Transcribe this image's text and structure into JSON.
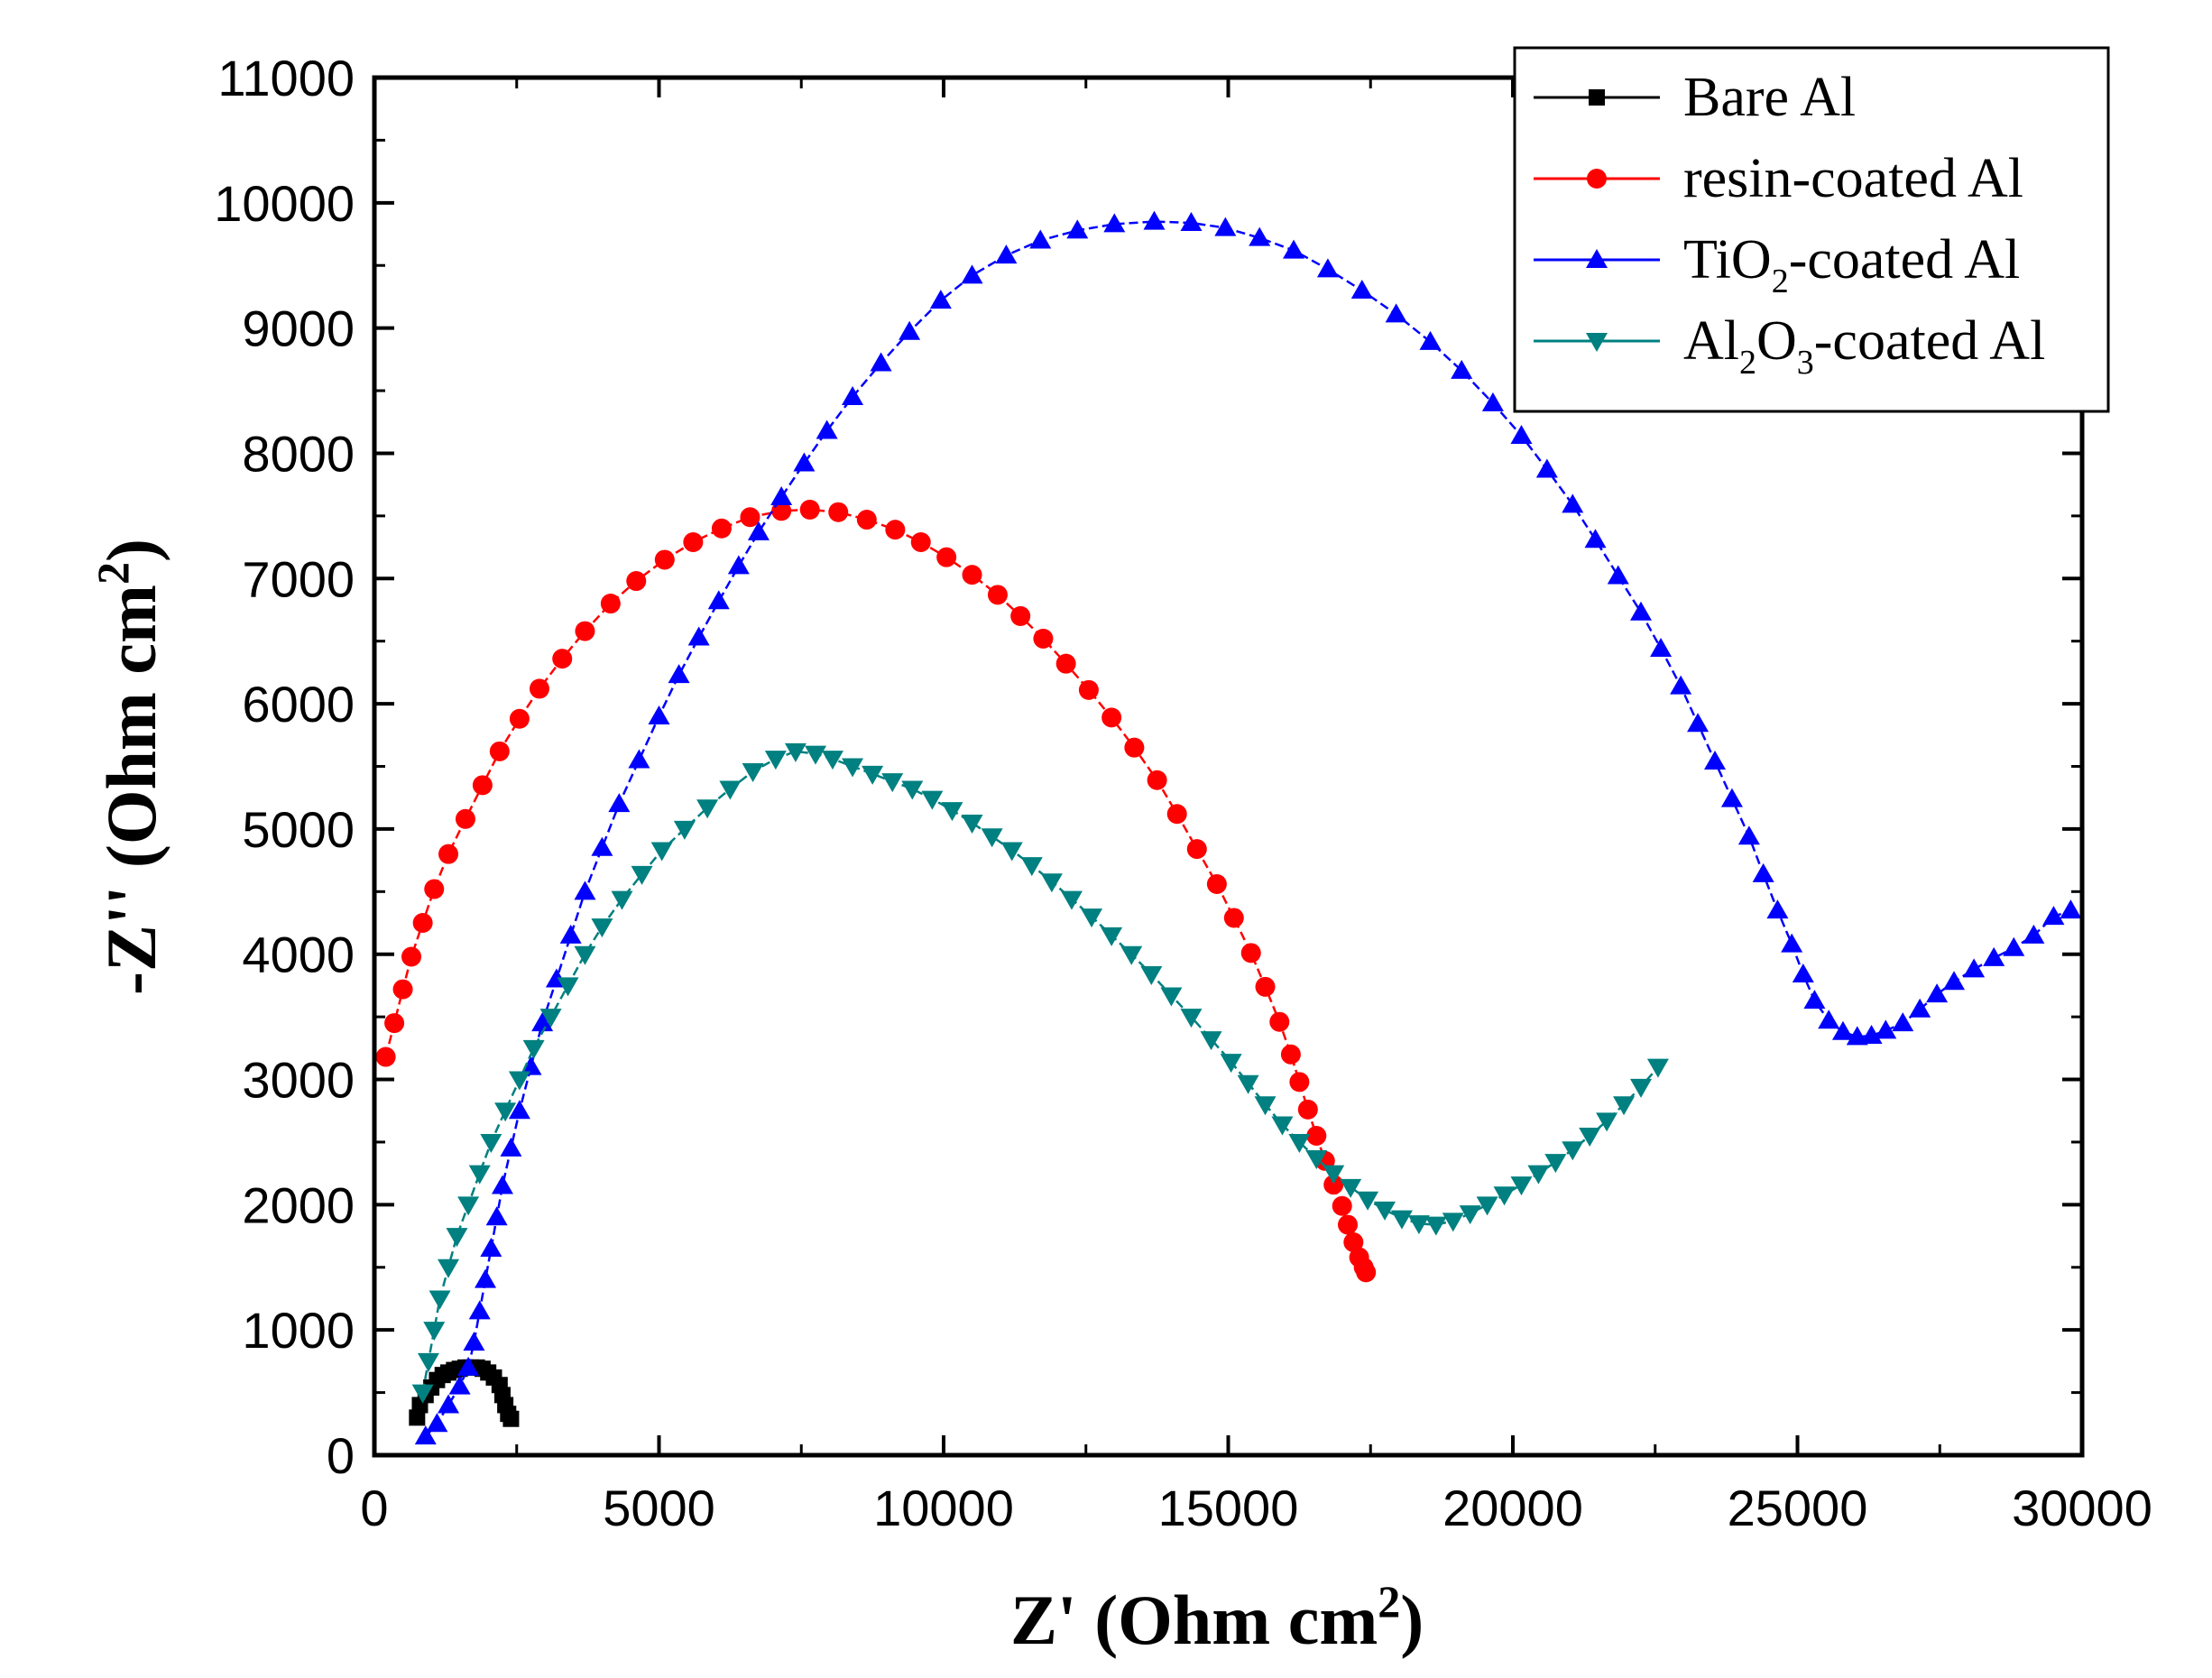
{
  "chart_data": {
    "type": "scatter",
    "title": "",
    "xlabel": "Z'  (Ohm cm",
    "xlabel_sup": "2",
    "ylabel": "-Z''  (Ohm cm",
    "ylabel_sup": "2",
    "xlim": [
      0,
      30000
    ],
    "ylim": [
      0,
      11000
    ],
    "x_ticks": [
      0,
      5000,
      10000,
      15000,
      20000,
      25000,
      30000
    ],
    "y_ticks": [
      0,
      1000,
      2000,
      3000,
      4000,
      5000,
      6000,
      7000,
      8000,
      9000,
      10000,
      11000
    ],
    "x_tick_labels": [
      "0",
      "5000",
      "10000",
      "15000",
      "20000",
      "25000",
      "30000"
    ],
    "y_tick_labels": [
      "0",
      "1000",
      "2000",
      "3000",
      "4000",
      "5000",
      "6000",
      "7000",
      "8000",
      "9000",
      "10000",
      "11000"
    ],
    "legend_position": "top-right",
    "series": [
      {
        "name": "Bare Al",
        "legend_parts": [
          "Bare Al"
        ],
        "color": "#000000",
        "marker": "square",
        "points": [
          [
            750,
            300
          ],
          [
            800,
            400
          ],
          [
            900,
            480
          ],
          [
            1000,
            540
          ],
          [
            1100,
            600
          ],
          [
            1200,
            640
          ],
          [
            1300,
            660
          ],
          [
            1400,
            680
          ],
          [
            1500,
            690
          ],
          [
            1600,
            700
          ],
          [
            1700,
            700
          ],
          [
            1800,
            700
          ],
          [
            1900,
            690
          ],
          [
            2000,
            660
          ],
          [
            2100,
            620
          ],
          [
            2200,
            560
          ],
          [
            2250,
            480
          ],
          [
            2300,
            400
          ],
          [
            2350,
            330
          ],
          [
            2400,
            290
          ]
        ]
      },
      {
        "name": "resin-coated Al",
        "legend_parts": [
          "resin-coated Al"
        ],
        "color": "#ff0000",
        "marker": "circle",
        "points": [
          [
            200,
            3180
          ],
          [
            350,
            3450
          ],
          [
            500,
            3720
          ],
          [
            650,
            3980
          ],
          [
            850,
            4250
          ],
          [
            1050,
            4520
          ],
          [
            1300,
            4800
          ],
          [
            1600,
            5080
          ],
          [
            1900,
            5350
          ],
          [
            2200,
            5620
          ],
          [
            2550,
            5880
          ],
          [
            2900,
            6120
          ],
          [
            3300,
            6360
          ],
          [
            3700,
            6580
          ],
          [
            4150,
            6800
          ],
          [
            4600,
            6980
          ],
          [
            5100,
            7150
          ],
          [
            5600,
            7290
          ],
          [
            6100,
            7400
          ],
          [
            6600,
            7490
          ],
          [
            7150,
            7540
          ],
          [
            7650,
            7550
          ],
          [
            8150,
            7530
          ],
          [
            8650,
            7470
          ],
          [
            9150,
            7390
          ],
          [
            9600,
            7290
          ],
          [
            10050,
            7170
          ],
          [
            10500,
            7030
          ],
          [
            10950,
            6870
          ],
          [
            11350,
            6700
          ],
          [
            11750,
            6520
          ],
          [
            12150,
            6320
          ],
          [
            12550,
            6110
          ],
          [
            12950,
            5890
          ],
          [
            13350,
            5650
          ],
          [
            13750,
            5390
          ],
          [
            14100,
            5120
          ],
          [
            14450,
            4840
          ],
          [
            14800,
            4560
          ],
          [
            15100,
            4290
          ],
          [
            15400,
            4010
          ],
          [
            15650,
            3740
          ],
          [
            15900,
            3460
          ],
          [
            16100,
            3200
          ],
          [
            16250,
            2980
          ],
          [
            16400,
            2760
          ],
          [
            16550,
            2550
          ],
          [
            16700,
            2350
          ],
          [
            16850,
            2160
          ],
          [
            17000,
            1990
          ],
          [
            17100,
            1840
          ],
          [
            17200,
            1700
          ],
          [
            17300,
            1580
          ],
          [
            17380,
            1500
          ],
          [
            17420,
            1460
          ]
        ]
      },
      {
        "name": "TiO2-coated Al",
        "legend_parts": [
          "TiO",
          "2",
          "-coated Al"
        ],
        "color": "#0000ff",
        "marker": "triangle-up",
        "points": [
          [
            900,
            150
          ],
          [
            1100,
            250
          ],
          [
            1300,
            400
          ],
          [
            1500,
            550
          ],
          [
            1650,
            700
          ],
          [
            1750,
            900
          ],
          [
            1850,
            1150
          ],
          [
            1950,
            1400
          ],
          [
            2050,
            1650
          ],
          [
            2150,
            1900
          ],
          [
            2250,
            2150
          ],
          [
            2400,
            2450
          ],
          [
            2550,
            2750
          ],
          [
            2750,
            3100
          ],
          [
            2950,
            3450
          ],
          [
            3200,
            3800
          ],
          [
            3450,
            4150
          ],
          [
            3700,
            4500
          ],
          [
            4000,
            4850
          ],
          [
            4300,
            5200
          ],
          [
            4650,
            5550
          ],
          [
            5000,
            5900
          ],
          [
            5350,
            6230
          ],
          [
            5700,
            6530
          ],
          [
            6050,
            6820
          ],
          [
            6400,
            7100
          ],
          [
            6750,
            7370
          ],
          [
            7150,
            7650
          ],
          [
            7550,
            7920
          ],
          [
            7950,
            8180
          ],
          [
            8400,
            8450
          ],
          [
            8900,
            8720
          ],
          [
            9400,
            8970
          ],
          [
            9950,
            9220
          ],
          [
            10500,
            9420
          ],
          [
            11100,
            9580
          ],
          [
            11700,
            9700
          ],
          [
            12350,
            9780
          ],
          [
            13000,
            9830
          ],
          [
            13700,
            9850
          ],
          [
            14350,
            9840
          ],
          [
            14950,
            9800
          ],
          [
            15550,
            9720
          ],
          [
            16150,
            9620
          ],
          [
            16750,
            9470
          ],
          [
            17350,
            9300
          ],
          [
            17950,
            9110
          ],
          [
            18550,
            8890
          ],
          [
            19100,
            8660
          ],
          [
            19650,
            8400
          ],
          [
            20150,
            8140
          ],
          [
            20600,
            7870
          ],
          [
            21050,
            7590
          ],
          [
            21450,
            7310
          ],
          [
            21850,
            7020
          ],
          [
            22250,
            6730
          ],
          [
            22600,
            6440
          ],
          [
            22950,
            6140
          ],
          [
            23250,
            5840
          ],
          [
            23550,
            5540
          ],
          [
            23850,
            5240
          ],
          [
            24150,
            4940
          ],
          [
            24400,
            4640
          ],
          [
            24650,
            4350
          ],
          [
            24900,
            4080
          ],
          [
            25100,
            3840
          ],
          [
            25300,
            3630
          ],
          [
            25550,
            3470
          ],
          [
            25800,
            3380
          ],
          [
            26050,
            3340
          ],
          [
            26300,
            3350
          ],
          [
            26550,
            3390
          ],
          [
            26850,
            3450
          ],
          [
            27150,
            3560
          ],
          [
            27450,
            3680
          ],
          [
            27750,
            3780
          ],
          [
            28100,
            3880
          ],
          [
            28450,
            3970
          ],
          [
            28800,
            4050
          ],
          [
            29150,
            4150
          ],
          [
            29500,
            4300
          ],
          [
            29800,
            4350
          ]
        ]
      },
      {
        "name": "Al2O3-coated Al",
        "legend_parts": [
          "Al",
          "2",
          "O",
          "3",
          "-coated Al"
        ],
        "color": "#008080",
        "marker": "triangle-down",
        "points": [
          [
            850,
            500
          ],
          [
            950,
            750
          ],
          [
            1050,
            1000
          ],
          [
            1150,
            1250
          ],
          [
            1300,
            1500
          ],
          [
            1450,
            1750
          ],
          [
            1650,
            2000
          ],
          [
            1850,
            2250
          ],
          [
            2050,
            2500
          ],
          [
            2300,
            2750
          ],
          [
            2550,
            3000
          ],
          [
            2800,
            3250
          ],
          [
            3100,
            3500
          ],
          [
            3400,
            3750
          ],
          [
            3700,
            4000
          ],
          [
            4000,
            4220
          ],
          [
            4350,
            4440
          ],
          [
            4700,
            4640
          ],
          [
            5050,
            4830
          ],
          [
            5450,
            5000
          ],
          [
            5850,
            5170
          ],
          [
            6250,
            5320
          ],
          [
            6650,
            5460
          ],
          [
            7050,
            5560
          ],
          [
            7400,
            5620
          ],
          [
            7750,
            5600
          ],
          [
            8050,
            5560
          ],
          [
            8400,
            5500
          ],
          [
            8750,
            5440
          ],
          [
            9100,
            5380
          ],
          [
            9450,
            5320
          ],
          [
            9800,
            5240
          ],
          [
            10150,
            5150
          ],
          [
            10500,
            5050
          ],
          [
            10850,
            4940
          ],
          [
            11200,
            4830
          ],
          [
            11550,
            4710
          ],
          [
            11900,
            4580
          ],
          [
            12250,
            4440
          ],
          [
            12600,
            4300
          ],
          [
            12950,
            4150
          ],
          [
            13300,
            4000
          ],
          [
            13650,
            3840
          ],
          [
            14000,
            3670
          ],
          [
            14350,
            3500
          ],
          [
            14700,
            3320
          ],
          [
            15050,
            3140
          ],
          [
            15350,
            2970
          ],
          [
            15650,
            2800
          ],
          [
            15950,
            2640
          ],
          [
            16250,
            2500
          ],
          [
            16550,
            2370
          ],
          [
            16850,
            2250
          ],
          [
            17150,
            2140
          ],
          [
            17450,
            2040
          ],
          [
            17750,
            1960
          ],
          [
            18050,
            1890
          ],
          [
            18350,
            1850
          ],
          [
            18650,
            1840
          ],
          [
            18950,
            1870
          ],
          [
            19250,
            1930
          ],
          [
            19550,
            2000
          ],
          [
            19850,
            2080
          ],
          [
            20150,
            2160
          ],
          [
            20450,
            2250
          ],
          [
            20750,
            2340
          ],
          [
            21050,
            2440
          ],
          [
            21350,
            2550
          ],
          [
            21650,
            2670
          ],
          [
            21950,
            2800
          ],
          [
            22250,
            2940
          ],
          [
            22550,
            3100
          ]
        ]
      }
    ]
  }
}
